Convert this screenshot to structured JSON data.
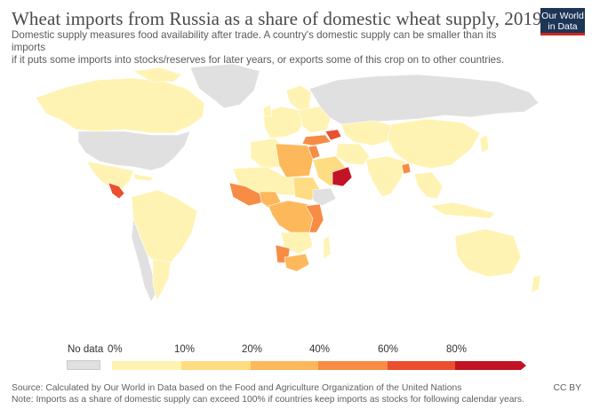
{
  "header": {
    "title": "Wheat imports from Russia as a share of domestic wheat supply, 2019",
    "subtitle_line1": "Domestic supply measures food availability after trade. A country's domestic supply can be smaller than its imports",
    "subtitle_line2": "if it puts some imports into stocks/reserves for later years, or exports some of this crop on to other countries."
  },
  "logo": {
    "line1": "Our World",
    "line2": "in Data",
    "bg": "#1d3557",
    "accent": "#ce261e"
  },
  "legend": {
    "no_data_label": "No data",
    "no_data_color": "#e0e0e0",
    "bins": [
      {
        "label": "0%",
        "color": "#fff3b3"
      },
      {
        "label": "10%",
        "color": "#fedc82"
      },
      {
        "label": "20%",
        "color": "#fdb85c"
      },
      {
        "label": "40%",
        "color": "#f78c45"
      },
      {
        "label": "60%",
        "color": "#ea4f2f"
      },
      {
        "label": "80%",
        "color": "#c21426"
      }
    ]
  },
  "footer": {
    "source": "Source: Calculated by Our World in Data based on the Food and Agriculture Organization of the United Nations",
    "note": "Note: Imports as a share of domestic supply can exceed 100% if countries keep imports as stocks for following calendar years.",
    "license": "CC BY"
  }
}
